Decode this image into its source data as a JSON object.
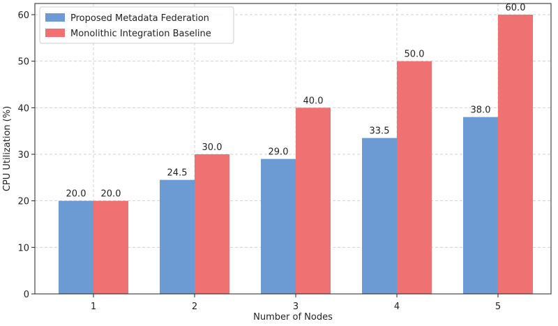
{
  "chart_data": {
    "type": "bar",
    "x_label": "Number of Nodes",
    "y_label": "CPU Utilization (%)",
    "categories": [
      "1",
      "2",
      "3",
      "4",
      "5"
    ],
    "series": [
      {
        "name": "Proposed Metadata Federation",
        "color": "#6b9bd2",
        "values": [
          20,
          24.5,
          29,
          33.5,
          38
        ],
        "value_labels": [
          "20.0",
          "24.5",
          "29.0",
          "33.5",
          "38.0"
        ]
      },
      {
        "name": "Monolithic Integration Baseline",
        "color": "#f07171",
        "values": [
          20,
          30,
          40,
          50,
          60
        ],
        "value_labels": [
          "20.0",
          "30.0",
          "40.0",
          "50.0",
          "60.0"
        ]
      }
    ],
    "ylim": [
      0,
      62.4
    ],
    "yticks": [
      0,
      10,
      20,
      30,
      40,
      50,
      60
    ],
    "grid": true,
    "legend": "upper-left"
  }
}
